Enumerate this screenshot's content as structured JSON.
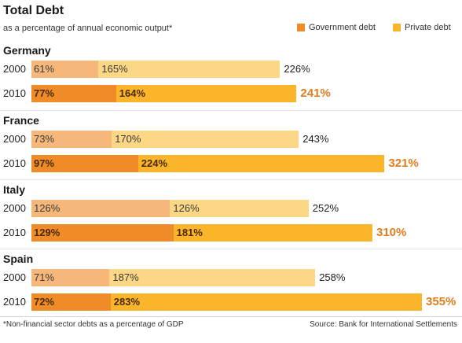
{
  "header": {
    "title": "Total Debt",
    "subtitle": "as a percentage of annual economic output*"
  },
  "legend": [
    {
      "label": "Government debt",
      "color": "#f08c28"
    },
    {
      "label": "Private debt",
      "color": "#fbb52b"
    }
  ],
  "colors": {
    "gov_2000": "#f5b87a",
    "priv_2000": "#fcd785",
    "gov_2010": "#f08c28",
    "priv_2010": "#fbb52b",
    "total_2010_text": "#e07d1d"
  },
  "footer": {
    "footnote": "*Non-financial sector debts as a percentage of GDP",
    "source": "Source: Bank for International Settlements"
  },
  "chart_data": {
    "type": "bar",
    "stacked": true,
    "orientation": "horizontal",
    "countries": [
      {
        "name": "Germany",
        "rows": [
          {
            "year": "2000",
            "government": 61,
            "private": 165,
            "total": 226,
            "gov_label": "61%",
            "priv_label": "165%",
            "total_label": "226%"
          },
          {
            "year": "2010",
            "government": 77,
            "private": 164,
            "total": 241,
            "gov_label": "77%",
            "priv_label": "164%",
            "total_label": "241%"
          }
        ]
      },
      {
        "name": "France",
        "rows": [
          {
            "year": "2000",
            "government": 73,
            "private": 170,
            "total": 243,
            "gov_label": "73%",
            "priv_label": "170%",
            "total_label": "243%"
          },
          {
            "year": "2010",
            "government": 97,
            "private": 224,
            "total": 321,
            "gov_label": "97%",
            "priv_label": "224%",
            "total_label": "321%"
          }
        ]
      },
      {
        "name": "Italy",
        "rows": [
          {
            "year": "2000",
            "government": 126,
            "private": 126,
            "total": 252,
            "gov_label": "126%",
            "priv_label": "126%",
            "total_label": "252%"
          },
          {
            "year": "2010",
            "government": 129,
            "private": 181,
            "total": 310,
            "gov_label": "129%",
            "priv_label": "181%",
            "total_label": "310%"
          }
        ]
      },
      {
        "name": "Spain",
        "rows": [
          {
            "year": "2000",
            "government": 71,
            "private": 187,
            "total": 258,
            "gov_label": "71%",
            "priv_label": "187%",
            "total_label": "258%"
          },
          {
            "year": "2010",
            "government": 72,
            "private": 283,
            "total": 355,
            "gov_label": "72%",
            "priv_label": "283%",
            "total_label": "355%"
          }
        ]
      }
    ]
  }
}
